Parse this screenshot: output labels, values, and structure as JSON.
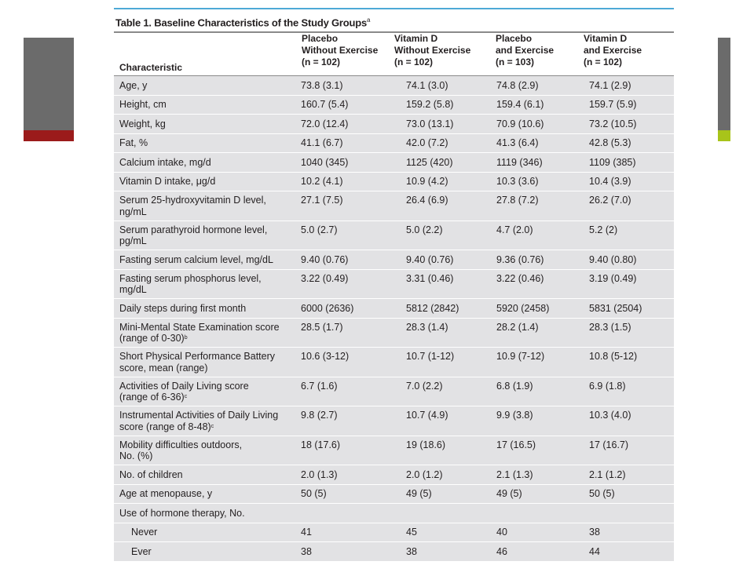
{
  "title": "Table 1. Baseline Characteristics of the Study Groups",
  "title_footnote": "a",
  "columns": {
    "characteristic": "Characteristic",
    "groups": [
      {
        "line1": "Placebo",
        "line2": "Without Exercise",
        "n": "(n = 102)"
      },
      {
        "line1": "Vitamin D",
        "line2": "Without Exercise",
        "n": "(n = 102)"
      },
      {
        "line1": "Placebo",
        "line2": "and Exercise",
        "n": "(n = 103)"
      },
      {
        "line1": "Vitamin D",
        "line2": "and Exercise",
        "n": "(n = 102)"
      }
    ]
  },
  "rows": [
    {
      "label": [
        "Age, y"
      ],
      "values": [
        "73.8 (3.1)",
        "74.1 (3.0)",
        "74.8 (2.9)",
        "74.1 (2.9)"
      ]
    },
    {
      "label": [
        "Height, cm"
      ],
      "values": [
        "160.7 (5.4)",
        "159.2 (5.8)",
        "159.4 (6.1)",
        "159.7 (5.9)"
      ]
    },
    {
      "label": [
        "Weight, kg"
      ],
      "values": [
        "72.0 (12.4)",
        "73.0 (13.1)",
        "70.9 (10.6)",
        "73.2 (10.5)"
      ]
    },
    {
      "label": [
        "Fat, %"
      ],
      "values": [
        "41.1 (6.7)",
        "42.0 (7.2)",
        "41.3 (6.4)",
        "42.8 (5.3)"
      ]
    },
    {
      "label": [
        "Calcium intake, mg/d"
      ],
      "values": [
        "1040 (345)",
        "1125 (420)",
        "1119 (346)",
        "1109 (385)"
      ]
    },
    {
      "label": [
        "Vitamin D intake, μg/d"
      ],
      "values": [
        "10.2 (4.1)",
        "10.9 (4.2)",
        "10.3 (3.6)",
        "10.4 (3.9)"
      ]
    },
    {
      "label": [
        "Serum 25-hydroxyvitamin D level,",
        "ng/mL"
      ],
      "values": [
        "27.1 (7.5)",
        "26.4 (6.9)",
        "27.8 (7.2)",
        "26.2 (7.0)"
      ]
    },
    {
      "label": [
        "Serum parathyroid hormone level,",
        "pg/mL"
      ],
      "values": [
        "5.0 (2.7)",
        "5.0 (2.2)",
        "4.7 (2.0)",
        "5.2 (2)"
      ]
    },
    {
      "label": [
        "Fasting serum calcium level, mg/dL"
      ],
      "values": [
        "9.40 (0.76)",
        "9.40 (0.76)",
        "9.36 (0.76)",
        "9.40 (0.80)"
      ]
    },
    {
      "label": [
        "Fasting serum phosphorus level,",
        "mg/dL"
      ],
      "values": [
        "3.22 (0.49)",
        "3.31 (0.46)",
        "3.22 (0.46)",
        "3.19 (0.49)"
      ]
    },
    {
      "label": [
        "Daily steps during first month"
      ],
      "values": [
        "6000 (2636)",
        "5812 (2842)",
        "5920 (2458)",
        "5831 (2504)"
      ]
    },
    {
      "label": [
        "Mini-Mental State Examination score",
        "(range of 0-30)"
      ],
      "footnote": "b",
      "values": [
        "28.5 (1.7)",
        "28.3 (1.4)",
        "28.2 (1.4)",
        "28.3 (1.5)"
      ]
    },
    {
      "label": [
        "Short Physical Performance Battery",
        "score, mean (range)"
      ],
      "values": [
        "10.6 (3-12)",
        "10.7 (1-12)",
        "10.9 (7-12)",
        "10.8 (5-12)"
      ]
    },
    {
      "label": [
        "Activities of Daily Living score",
        "(range of 6-36)"
      ],
      "footnote": "c",
      "values": [
        "6.7 (1.6)",
        "7.0 (2.2)",
        "6.8 (1.9)",
        "6.9 (1.8)"
      ]
    },
    {
      "label": [
        "Instrumental Activities of Daily Living",
        "score (range of 8-48)"
      ],
      "footnote": "c",
      "values": [
        "9.8 (2.7)",
        "10.7 (4.9)",
        "9.9 (3.8)",
        "10.3 (4.0)"
      ]
    },
    {
      "label": [
        "Mobility difficulties outdoors,",
        "No. (%)"
      ],
      "values": [
        "18 (17.6)",
        "19 (18.6)",
        "17 (16.5)",
        "17 (16.7)"
      ]
    },
    {
      "label": [
        "No. of children"
      ],
      "values": [
        "2.0 (1.3)",
        "2.0 (1.2)",
        "2.1 (1.3)",
        "2.1 (1.2)"
      ]
    },
    {
      "label": [
        "Age at menopause, y"
      ],
      "values": [
        "50 (5)",
        "49 (5)",
        "49 (5)",
        "50 (5)"
      ]
    },
    {
      "label": [
        "Use of hormone therapy, No."
      ],
      "values": [
        "",
        "",
        "",
        ""
      ]
    },
    {
      "label": [
        "Never"
      ],
      "indent": true,
      "values": [
        "41",
        "45",
        "40",
        "38"
      ]
    },
    {
      "label": [
        "Ever"
      ],
      "indent": true,
      "values": [
        "38",
        "38",
        "46",
        "44"
      ]
    }
  ]
}
